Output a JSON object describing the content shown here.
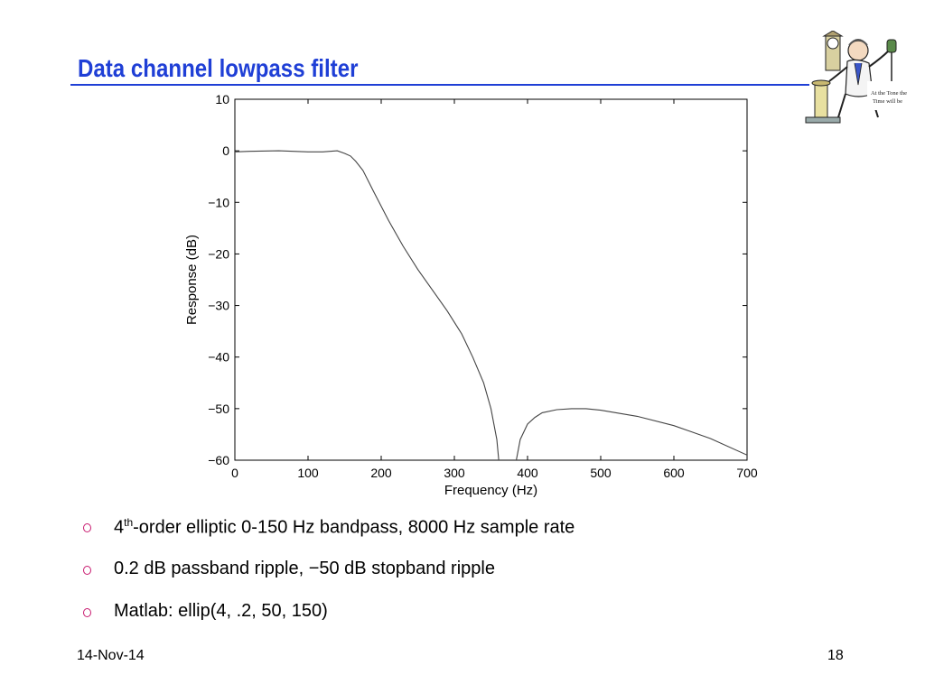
{
  "slide": {
    "title": "Data channel lowpass filter",
    "clipart_caption": [
      "At the Tone the",
      "Time will be"
    ],
    "bullets": [
      {
        "pre": "4",
        "sup": "th",
        "post": "-order elliptic 0-150 Hz bandpass, 8000 Hz sample rate"
      },
      {
        "text": "0.2 dB passband ripple, −50 dB stopband ripple"
      },
      {
        "text": "Matlab: ellip(4, .2, 50, 150)"
      }
    ],
    "footer": {
      "date": "14-Nov-14",
      "page": "18"
    }
  },
  "colors": {
    "title": "#1f3fd6",
    "bullet_marker": "#c8186e",
    "curve": "#444444"
  },
  "chart_data": {
    "type": "line",
    "xlabel": "Frequency (Hz)",
    "ylabel": "Response (dB)",
    "xlim": [
      0,
      700
    ],
    "ylim": [
      -60,
      10
    ],
    "xticks": [
      "0",
      "100",
      "200",
      "300",
      "400",
      "500",
      "600",
      "700"
    ],
    "yticks": [
      "10",
      "0",
      "−10",
      "−20",
      "−30",
      "−40",
      "−50",
      "−60"
    ],
    "xtick_values": [
      0,
      100,
      200,
      300,
      400,
      500,
      600,
      700
    ],
    "ytick_values": [
      10,
      0,
      -10,
      -20,
      -30,
      -40,
      -50,
      -60
    ],
    "grid": false,
    "series": [
      {
        "x": [
          0,
          20,
          60,
          100,
          120,
          140,
          150,
          158,
          165,
          175,
          190,
          210,
          230,
          250,
          270,
          290,
          310,
          325,
          340,
          350,
          358,
          362
        ],
        "y": [
          -0.2,
          -0.1,
          0,
          -0.2,
          -0.2,
          0,
          -0.5,
          -1,
          -2,
          -3.8,
          -8,
          -13.5,
          -18.5,
          -23,
          -27,
          -31,
          -35.5,
          -40,
          -45,
          -50,
          -56,
          -62
        ]
      },
      {
        "x": [
          382,
          390,
          400,
          410,
          420,
          440,
          460,
          480,
          500,
          550,
          600,
          650,
          700
        ],
        "y": [
          -62,
          -56,
          -53,
          -51.7,
          -50.8,
          -50.2,
          -50,
          -50,
          -50.3,
          -51.5,
          -53.3,
          -55.8,
          -59
        ]
      }
    ]
  }
}
